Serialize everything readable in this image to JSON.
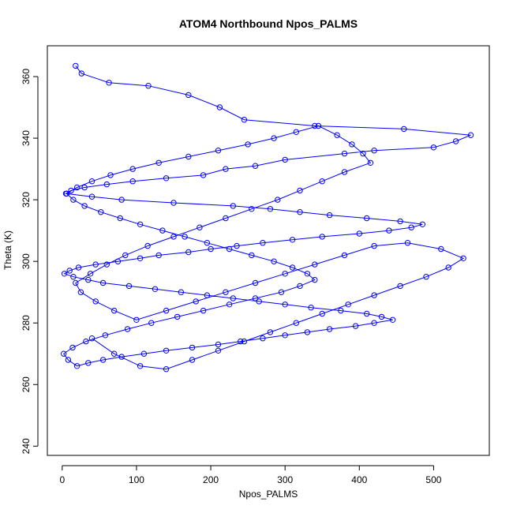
{
  "chart_data": {
    "type": "line",
    "title": "ATOM4 Northbound Npos_PALMS",
    "xlabel": "Npos_PALMS",
    "ylabel": "Theta (K)",
    "xlim": [
      -20,
      575
    ],
    "ylim": [
      237,
      370
    ],
    "x_ticks": [
      0,
      100,
      200,
      300,
      400,
      500
    ],
    "y_ticks": [
      240,
      260,
      280,
      300,
      320,
      340,
      360
    ],
    "grid": false,
    "marker": "open-circle",
    "color": "#0000ff",
    "series": [
      {
        "x": [
          18,
          26,
          63,
          116,
          170,
          212,
          245,
          340,
          460,
          550,
          530,
          500,
          420,
          380,
          300,
          260,
          220,
          190,
          140,
          95,
          60,
          30,
          12,
          5,
          40,
          80,
          150,
          230,
          280,
          320,
          360,
          410,
          455,
          485,
          470,
          440,
          400,
          350,
          310,
          270,
          235,
          200,
          170,
          130,
          105,
          75,
          45,
          22,
          10,
          3,
          15,
          35,
          55,
          90,
          125,
          160,
          195,
          230,
          265,
          300,
          335,
          375,
          410,
          430,
          445,
          420,
          395,
          360,
          330,
          300,
          270,
          240,
          210,
          175,
          140,
          110,
          80,
          55,
          35,
          20,
          8,
          2,
          14,
          32,
          58,
          88,
          120,
          155,
          190,
          225,
          260,
          295,
          320,
          340,
          330,
          310,
          285,
          255,
          225,
          195,
          165,
          135,
          105,
          78,
          52,
          30,
          15,
          6,
          20,
          40,
          65,
          95,
          130,
          170,
          210,
          250,
          285,
          315,
          345,
          370,
          390,
          405,
          415,
          380,
          350,
          320,
          290,
          255,
          220,
          185,
          150,
          115,
          85,
          60,
          38,
          18,
          25,
          45,
          70,
          100,
          140,
          180,
          220,
          260,
          300,
          340,
          380,
          420,
          465,
          510,
          540,
          520,
          490,
          455,
          420,
          385,
          350,
          315,
          280,
          245,
          210,
          175,
          140,
          105,
          70,
          40
        ],
        "y": [
          363.5,
          361,
          358,
          357,
          354,
          350,
          346,
          344,
          343,
          341,
          339,
          337,
          336,
          335,
          333,
          331,
          330,
          328,
          327,
          326,
          325,
          324,
          323,
          322,
          321,
          320,
          319,
          318,
          317,
          316,
          315,
          314,
          313,
          312,
          311,
          310,
          309,
          308,
          307,
          306,
          305,
          304,
          303,
          302,
          301,
          300,
          299,
          298,
          297,
          296,
          295,
          294,
          293,
          292,
          291,
          290,
          289,
          288,
          287,
          286,
          285,
          284,
          283,
          282,
          281,
          280,
          279,
          278,
          277,
          276,
          275,
          274,
          273,
          272,
          271,
          270,
          269,
          268,
          267,
          266,
          268,
          270,
          272,
          274,
          276,
          278,
          280,
          282,
          284,
          286,
          288,
          290,
          292,
          294,
          296,
          298,
          300,
          302,
          304,
          306,
          308,
          310,
          312,
          314,
          316,
          318,
          320,
          322,
          324,
          326,
          328,
          330,
          332,
          334,
          336,
          338,
          340,
          342,
          344,
          341,
          338,
          335,
          332,
          329,
          326,
          323,
          320,
          317,
          314,
          311,
          308,
          305,
          302,
          299,
          296,
          293,
          290,
          287,
          284,
          281,
          284,
          287,
          290,
          293,
          296,
          299,
          302,
          305,
          306,
          304,
          301,
          298,
          295,
          292,
          289,
          286,
          283,
          280,
          277,
          274,
          271,
          268,
          265,
          266,
          270,
          275
        ]
      }
    ]
  }
}
